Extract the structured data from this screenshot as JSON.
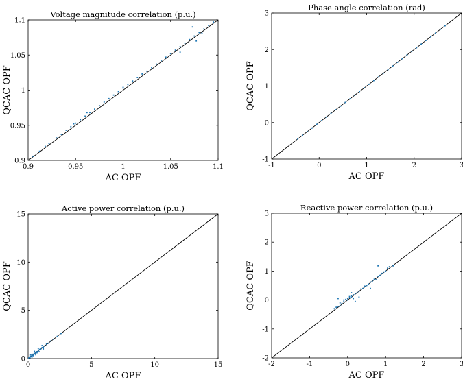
{
  "chart_data": [
    {
      "type": "scatter",
      "title": "Voltage magnitude correlation (p.u.)",
      "xlabel": "AC OPF",
      "ylabel": "QCAC OPF",
      "xlim": [
        0.9,
        1.1
      ],
      "ylim": [
        0.9,
        1.1
      ],
      "xticks": [
        0.9,
        0.95,
        1,
        1.05,
        1.1
      ],
      "yticks": [
        0.9,
        0.95,
        1,
        1.05,
        1.1
      ],
      "xtick_labels": [
        "0.9",
        "0.95",
        "1",
        "1.05",
        "1.1"
      ],
      "ytick_labels": [
        "0.9",
        "0.95",
        "1",
        "1.05",
        "1.1"
      ],
      "reference_line": "y = x",
      "point_color": "#1f77b4",
      "points": [
        [
          0.905,
          0.906
        ],
        [
          0.912,
          0.913
        ],
        [
          0.918,
          0.92
        ],
        [
          0.922,
          0.924
        ],
        [
          0.93,
          0.932
        ],
        [
          0.935,
          0.937
        ],
        [
          0.94,
          0.943
        ],
        [
          0.945,
          0.948
        ],
        [
          0.95,
          0.953
        ],
        [
          0.955,
          0.958
        ],
        [
          0.96,
          0.963
        ],
        [
          0.965,
          0.968
        ],
        [
          0.97,
          0.973
        ],
        [
          0.975,
          0.978
        ],
        [
          0.98,
          0.983
        ],
        [
          0.985,
          0.988
        ],
        [
          0.99,
          0.993
        ],
        [
          0.995,
          0.998
        ],
        [
          1.0,
          1.003
        ],
        [
          1.005,
          1.008
        ],
        [
          1.01,
          1.013
        ],
        [
          1.015,
          1.018
        ],
        [
          1.02,
          1.023
        ],
        [
          1.025,
          1.027
        ],
        [
          1.03,
          1.032
        ],
        [
          1.035,
          1.037
        ],
        [
          1.04,
          1.042
        ],
        [
          1.045,
          1.047
        ],
        [
          1.05,
          1.052
        ],
        [
          1.055,
          1.057
        ],
        [
          1.06,
          1.062
        ],
        [
          1.065,
          1.067
        ],
        [
          1.07,
          1.072
        ],
        [
          1.075,
          1.077
        ],
        [
          1.08,
          1.082
        ],
        [
          1.085,
          1.087
        ],
        [
          1.09,
          1.092
        ],
        [
          1.095,
          1.097
        ],
        [
          1.073,
          1.09
        ],
        [
          1.06,
          1.054
        ],
        [
          1.077,
          1.07
        ],
        [
          0.962,
          0.968
        ],
        [
          0.948,
          0.952
        ],
        [
          1.083,
          1.081
        ],
        [
          1.0,
          1.004
        ]
      ]
    },
    {
      "type": "scatter",
      "title": "Phase angle correlation (rad)",
      "xlabel": "AC OPF",
      "ylabel": "QCAC OPF",
      "xlim": [
        -1,
        3
      ],
      "ylim": [
        -1,
        3
      ],
      "xticks": [
        -1,
        0,
        1,
        2,
        3
      ],
      "yticks": [
        -1,
        0,
        1,
        2,
        3
      ],
      "xtick_labels": [
        "-1",
        "0",
        "1",
        "2",
        "3"
      ],
      "ytick_labels": [
        "-1",
        "0",
        "1",
        "2",
        "3"
      ],
      "reference_line": "y = x",
      "point_color": "#1f77b4",
      "points": [
        [
          -0.45,
          -0.45
        ],
        [
          -0.35,
          -0.35
        ],
        [
          -0.25,
          -0.25
        ],
        [
          -0.15,
          -0.15
        ],
        [
          -0.05,
          -0.05
        ],
        [
          0.05,
          0.05
        ],
        [
          0.15,
          0.15
        ],
        [
          0.25,
          0.25
        ],
        [
          0.35,
          0.35
        ],
        [
          0.45,
          0.45
        ],
        [
          0.55,
          0.55
        ],
        [
          0.65,
          0.65
        ],
        [
          0.75,
          0.75
        ],
        [
          0.85,
          0.85
        ],
        [
          0.95,
          0.95
        ],
        [
          1.05,
          1.05
        ],
        [
          1.15,
          1.15
        ],
        [
          1.25,
          1.25
        ],
        [
          1.35,
          1.35
        ],
        [
          1.45,
          1.45
        ],
        [
          1.55,
          1.55
        ],
        [
          1.65,
          1.65
        ],
        [
          1.75,
          1.75
        ],
        [
          1.85,
          1.85
        ],
        [
          1.95,
          1.95
        ],
        [
          2.05,
          2.05
        ],
        [
          2.15,
          2.15
        ],
        [
          2.25,
          2.25
        ],
        [
          2.35,
          2.35
        ],
        [
          2.45,
          2.45
        ],
        [
          2.55,
          2.55
        ],
        [
          2.65,
          2.65
        ]
      ]
    },
    {
      "type": "scatter",
      "title": "Active power correlation (p.u.)",
      "xlabel": "AC OPF",
      "ylabel": "QCAC OPF",
      "xlim": [
        0,
        15
      ],
      "ylim": [
        0,
        15
      ],
      "xticks": [
        0,
        5,
        10,
        15
      ],
      "yticks": [
        0,
        5,
        10,
        15
      ],
      "xtick_labels": [
        "0",
        "5",
        "10",
        "15"
      ],
      "ytick_labels": [
        "0",
        "5",
        "10",
        "15"
      ],
      "reference_line": "y = x",
      "point_color": "#1f77b4",
      "points": [
        [
          0.05,
          0.05
        ],
        [
          0.1,
          0.12
        ],
        [
          0.15,
          0.1
        ],
        [
          0.2,
          0.25
        ],
        [
          0.25,
          0.2
        ],
        [
          0.3,
          0.35
        ],
        [
          0.35,
          0.3
        ],
        [
          0.4,
          0.45
        ],
        [
          0.45,
          0.42
        ],
        [
          0.5,
          0.55
        ],
        [
          0.55,
          0.5
        ],
        [
          0.6,
          0.65
        ],
        [
          0.7,
          0.72
        ],
        [
          0.8,
          0.78
        ],
        [
          0.9,
          0.95
        ],
        [
          1.0,
          0.98
        ],
        [
          1.1,
          1.15
        ],
        [
          1.2,
          1.18
        ],
        [
          1.3,
          1.3
        ],
        [
          1.45,
          1.5
        ],
        [
          1.6,
          1.58
        ],
        [
          1.8,
          1.82
        ],
        [
          2.0,
          2.0
        ],
        [
          2.3,
          2.3
        ],
        [
          2.6,
          2.6
        ],
        [
          0.3,
          0.15
        ],
        [
          0.6,
          0.4
        ],
        [
          0.9,
          0.7
        ],
        [
          1.2,
          1.0
        ],
        [
          0.2,
          0.4
        ],
        [
          0.5,
          0.75
        ],
        [
          0.8,
          1.05
        ],
        [
          1.1,
          1.35
        ],
        [
          0.4,
          0.3
        ],
        [
          0.7,
          0.6
        ]
      ]
    },
    {
      "type": "scatter",
      "title": "Reactive power correlation (p.u.)",
      "xlabel": "AC OPF",
      "ylabel": "QCAC OPF",
      "xlim": [
        -2,
        3
      ],
      "ylim": [
        -2,
        3
      ],
      "xticks": [
        -2,
        -1,
        0,
        1,
        2,
        3
      ],
      "yticks": [
        -2,
        -1,
        0,
        1,
        2,
        3
      ],
      "xtick_labels": [
        "-2",
        "-1",
        "0",
        "1",
        "2",
        "3"
      ],
      "ytick_labels": [
        "-2",
        "-1",
        "0",
        "1",
        "2",
        "3"
      ],
      "reference_line": "y = x",
      "point_color": "#1f77b4",
      "points": [
        [
          -0.35,
          -0.3
        ],
        [
          -0.3,
          -0.25
        ],
        [
          -0.25,
          -0.22
        ],
        [
          -0.2,
          -0.2
        ],
        [
          -0.2,
          -0.1
        ],
        [
          -0.15,
          -0.12
        ],
        [
          -0.1,
          -0.05
        ],
        [
          -0.1,
          0.0
        ],
        [
          -0.05,
          0.02
        ],
        [
          0.0,
          0.0
        ],
        [
          0.0,
          0.05
        ],
        [
          0.05,
          0.08
        ],
        [
          0.05,
          0.12
        ],
        [
          0.1,
          0.1
        ],
        [
          0.1,
          0.15
        ],
        [
          0.15,
          0.18
        ],
        [
          0.15,
          0.05
        ],
        [
          0.2,
          0.22
        ],
        [
          0.25,
          0.25
        ],
        [
          0.3,
          0.3
        ],
        [
          0.35,
          0.38
        ],
        [
          0.4,
          0.4
        ],
        [
          0.45,
          0.48
        ],
        [
          0.5,
          0.5
        ],
        [
          0.55,
          0.55
        ],
        [
          0.6,
          0.62
        ],
        [
          0.65,
          0.65
        ],
        [
          0.7,
          0.72
        ],
        [
          0.75,
          0.7
        ],
        [
          0.8,
          0.82
        ],
        [
          0.85,
          0.85
        ],
        [
          0.9,
          0.92
        ],
        [
          0.95,
          0.97
        ],
        [
          1.0,
          1.0
        ],
        [
          1.05,
          1.1
        ],
        [
          1.1,
          1.15
        ],
        [
          0.8,
          1.18
        ],
        [
          0.1,
          0.25
        ],
        [
          0.2,
          -0.05
        ],
        [
          0.6,
          0.4
        ],
        [
          -0.25,
          0.05
        ],
        [
          0.3,
          0.1
        ],
        [
          1.2,
          1.18
        ]
      ]
    }
  ]
}
